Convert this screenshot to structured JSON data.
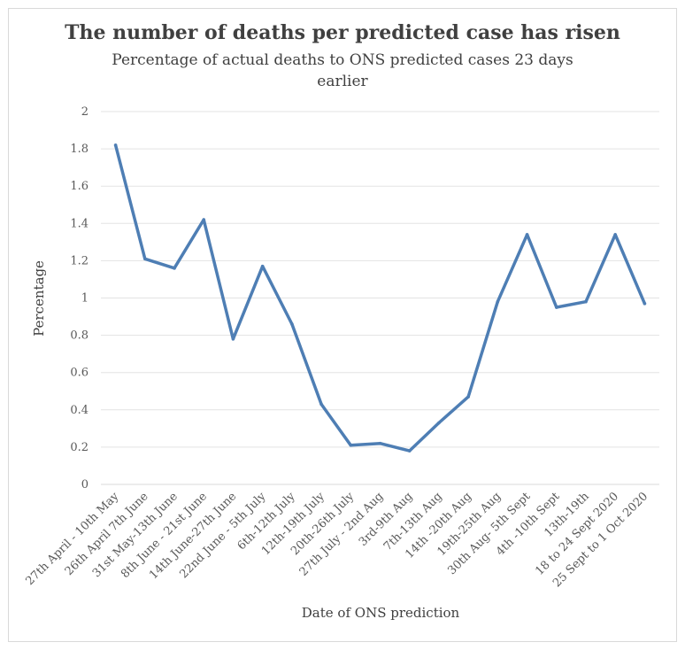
{
  "chart_data": {
    "type": "line",
    "title": "The number of deaths per predicted case has risen",
    "subtitle": "Percentage of actual deaths to ONS predicted cases 23 days earlier",
    "xlabel": "Date of ONS prediction",
    "ylabel": "Percentage",
    "ylim": [
      0,
      2
    ],
    "yticks": [
      "0",
      "0.2",
      "0.4",
      "0.6",
      "0.8",
      "1",
      "1.2",
      "1.4",
      "1.6",
      "1.8",
      "2"
    ],
    "grid": true,
    "legend": "none",
    "color": "#4e7eb4",
    "categories": [
      "27th April - 10th May",
      "26th April 7th June",
      "31st May-13th June",
      "8th June - 21st June",
      "14th June-27th June",
      "22nd June - 5th July",
      "6th-12th July",
      "12th-19th July",
      "20th-26th July",
      "27th July - 2nd Aug",
      "3rd-9th Aug",
      "7th-13th Aug",
      "14th -20th Aug",
      "19th-25th Aug",
      "30th Aug- 5th Sept",
      "4th -10th Sept",
      "13th-19th",
      "18 to 24 Sept 2020",
      "25 Sept to 1 Oct 2020"
    ],
    "series": [
      {
        "values": [
          1.82,
          1.21,
          1.16,
          1.42,
          0.78,
          1.17,
          0.86,
          0.43,
          0.21,
          0.22,
          0.18,
          0.33,
          0.47,
          0.98,
          1.34,
          0.95,
          0.98,
          1.34,
          0.97
        ]
      }
    ]
  }
}
